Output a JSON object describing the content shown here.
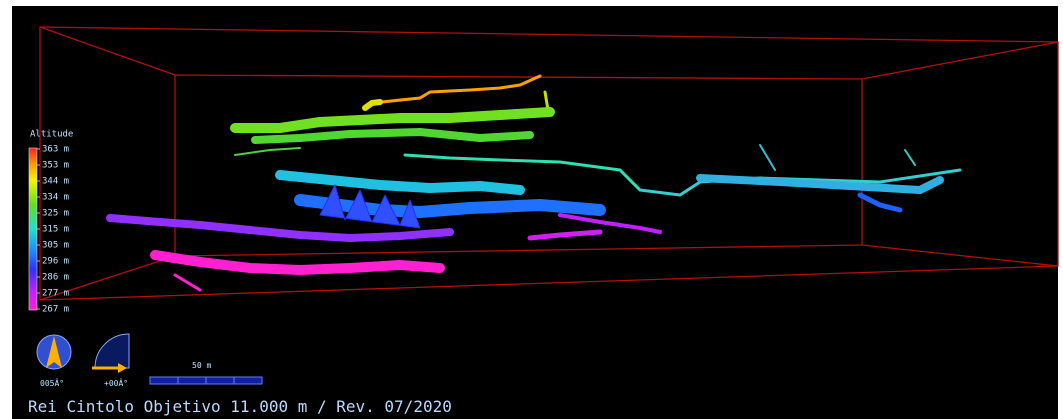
{
  "legend": {
    "title": "Altitude",
    "labels": [
      "363 m",
      "353 m",
      "344 m",
      "334 m",
      "325 m",
      "315 m",
      "305 m",
      "296 m",
      "286 m",
      "277 m",
      "267 m"
    ]
  },
  "compass": {
    "heading": "005Â°",
    "tilt": "+00Â°"
  },
  "scale_bar": {
    "label": "50 m"
  },
  "footer": {
    "caption": "Rei Cintolo Objetivo 11.000 m / Rev. 07/2020"
  }
}
